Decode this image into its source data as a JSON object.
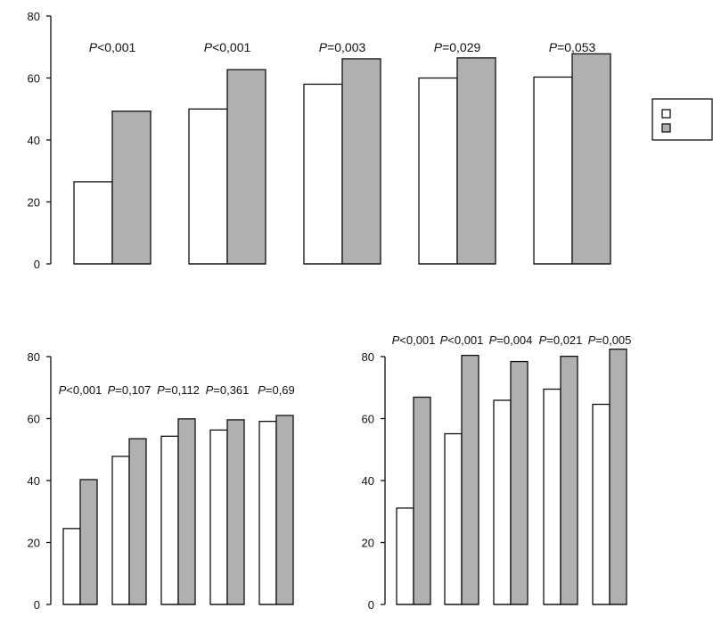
{
  "colors": {
    "series_a": "#ffffff",
    "series_b": "#b0b0b0",
    "stroke": "#111111"
  },
  "chart_data": [
    {
      "type": "bar",
      "title": "",
      "xlabel": "",
      "ylabel": "",
      "ylim": [
        0,
        80
      ],
      "yticks": [
        0,
        20,
        40,
        60,
        80
      ],
      "categories": [
        "",
        "",
        "",
        "",
        ""
      ],
      "series": [
        {
          "values": [
            26.5,
            50,
            58,
            60,
            60.3
          ]
        },
        {
          "values": [
            49.3,
            62.7,
            66.2,
            66.5,
            67.8
          ]
        }
      ],
      "p_values": [
        "<0,001",
        "<0,001",
        "=0,003",
        "=0,029",
        "=0,053"
      ],
      "legend": {
        "position": "right",
        "entries": [
          "",
          ""
        ]
      }
    },
    {
      "type": "bar",
      "title": "",
      "xlabel": "",
      "ylabel": "",
      "ylim": [
        0,
        80
      ],
      "yticks": [
        0,
        20,
        40,
        60,
        80
      ],
      "categories": [
        "",
        "",
        "",
        "",
        ""
      ],
      "series": [
        {
          "values": [
            24.5,
            47.8,
            54.3,
            56.3,
            59.1
          ]
        },
        {
          "values": [
            40.3,
            53.5,
            59.9,
            59.6,
            61
          ]
        }
      ],
      "p_values": [
        "<0,001",
        "=0,107",
        "=0,112",
        "=0,361",
        "=0,69"
      ]
    },
    {
      "type": "bar",
      "title": "",
      "xlabel": "",
      "ylabel": "",
      "ylim": [
        0,
        80
      ],
      "yticks": [
        0,
        20,
        40,
        60,
        80
      ],
      "categories": [
        "",
        "",
        "",
        "",
        ""
      ],
      "series": [
        {
          "values": [
            31.1,
            55.1,
            65.9,
            69.5,
            64.6
          ]
        },
        {
          "values": [
            66.9,
            80.4,
            78.4,
            80.1,
            82.4
          ]
        }
      ],
      "p_values": [
        "<0,001",
        "<0,001",
        "=0,004",
        "=0,021",
        "=0,005"
      ]
    }
  ]
}
